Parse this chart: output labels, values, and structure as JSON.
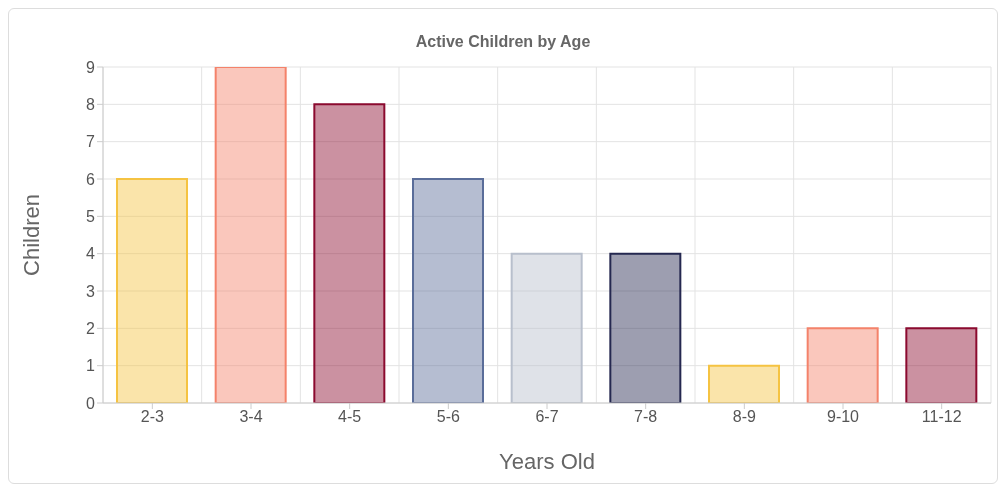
{
  "chart_data": {
    "type": "bar",
    "title": "Active Children by Age",
    "xlabel": "Years Old",
    "ylabel": "Children",
    "categories": [
      "2-3",
      "3-4",
      "4-5",
      "5-6",
      "6-7",
      "7-8",
      "8-9",
      "9-10",
      "11-12"
    ],
    "values": [
      6,
      9,
      8,
      6,
      4,
      4,
      1,
      2,
      2
    ],
    "colors": [
      "#f5c342",
      "#f4826a",
      "#8b0a2f",
      "#5a6d99",
      "#b8bfcc",
      "#252850",
      "#f5c342",
      "#f4826a",
      "#8b0a2f"
    ],
    "ylim": [
      0,
      9
    ],
    "yticks": [
      0,
      1,
      2,
      3,
      4,
      5,
      6,
      7,
      8,
      9
    ],
    "grid": true
  }
}
